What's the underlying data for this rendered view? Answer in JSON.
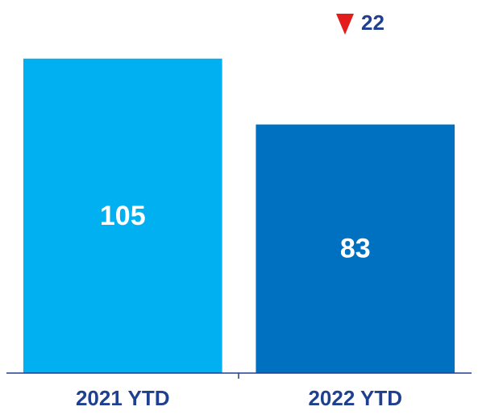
{
  "chart_data": {
    "type": "bar",
    "categories": [
      "2021 YTD",
      "2022 YTD"
    ],
    "values": [
      105,
      83
    ],
    "colors": [
      "#00b0f0",
      "#0070c0"
    ],
    "ylim": [
      0,
      120
    ],
    "annotation": "22",
    "annotation_color": "#e31c1c",
    "label_color": "#1f3f8f"
  }
}
